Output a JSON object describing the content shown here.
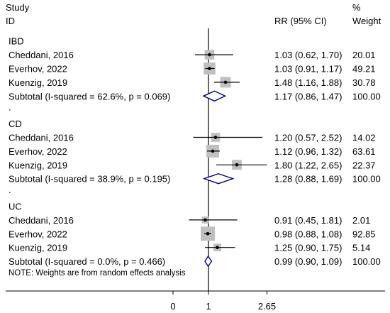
{
  "header": {
    "study_line1": "Study",
    "study_line2": "ID",
    "effect_label": "RR (95% CI)",
    "weight_line1": "%",
    "weight_line2": "Weight"
  },
  "note": "NOTE: Weights are from random effects analysis",
  "chart_data": {
    "type": "forest",
    "effect_measure": "RR",
    "x_ticks": [
      {
        "value": 0,
        "label": "0"
      },
      {
        "value": 1,
        "label": "1"
      },
      {
        "value": 2.65,
        "label": "2.65"
      }
    ],
    "null_line": 1,
    "rows": [
      {
        "kind": "group",
        "label": "IBD"
      },
      {
        "kind": "study",
        "label": "Cheddani, 2016",
        "rr": 1.03,
        "lo": 0.62,
        "hi": 1.7,
        "ci_text": "1.03 (0.62, 1.70)",
        "weight": 20.01,
        "weight_text": "20.01"
      },
      {
        "kind": "study",
        "label": "Everhov, 2022",
        "rr": 1.03,
        "lo": 0.91,
        "hi": 1.17,
        "ci_text": "1.03 (0.91, 1.17)",
        "weight": 49.21,
        "weight_text": "49.21"
      },
      {
        "kind": "study",
        "label": "Kuenzig, 2019",
        "rr": 1.48,
        "lo": 1.16,
        "hi": 1.88,
        "ci_text": "1.48 (1.16, 1.88)",
        "weight": 30.78,
        "weight_text": "30.78"
      },
      {
        "kind": "subtotal",
        "label": "Subtotal  (I-squared = 62.6%, p = 0.069)",
        "rr": 1.17,
        "lo": 0.86,
        "hi": 1.47,
        "ci_text": "1.17 (0.86, 1.47)",
        "weight_text": "100.00"
      },
      {
        "kind": "sep",
        "label": "."
      },
      {
        "kind": "group",
        "label": "CD"
      },
      {
        "kind": "study",
        "label": "Cheddani, 2016",
        "rr": 1.2,
        "lo": 0.57,
        "hi": 2.52,
        "ci_text": "1.20 (0.57, 2.52)",
        "weight": 14.02,
        "weight_text": "14.02"
      },
      {
        "kind": "study",
        "label": "Everhov, 2022",
        "rr": 1.12,
        "lo": 0.96,
        "hi": 1.32,
        "ci_text": "1.12 (0.96, 1.32)",
        "weight": 63.61,
        "weight_text": "63.61"
      },
      {
        "kind": "study",
        "label": "Kuenzig, 2019",
        "rr": 1.8,
        "lo": 1.22,
        "hi": 2.65,
        "ci_text": "1.80 (1.22, 2.65)",
        "weight": 22.37,
        "weight_text": "22.37"
      },
      {
        "kind": "subtotal",
        "label": "Subtotal  (I-squared = 38.9%, p = 0.195)",
        "rr": 1.28,
        "lo": 0.88,
        "hi": 1.69,
        "ci_text": "1.28 (0.88, 1.69)",
        "weight_text": "100.00"
      },
      {
        "kind": "sep",
        "label": "."
      },
      {
        "kind": "group",
        "label": "UC"
      },
      {
        "kind": "study",
        "label": "Cheddani, 2016",
        "rr": 0.91,
        "lo": 0.45,
        "hi": 1.81,
        "ci_text": "0.91 (0.45, 1.81)",
        "weight": 2.01,
        "weight_text": "2.01"
      },
      {
        "kind": "study",
        "label": "Everhov, 2022",
        "rr": 0.98,
        "lo": 0.88,
        "hi": 1.08,
        "ci_text": "0.98 (0.88, 1.08)",
        "weight": 92.85,
        "weight_text": "92.85"
      },
      {
        "kind": "study",
        "label": "Kuenzig, 2019",
        "rr": 1.25,
        "lo": 0.9,
        "hi": 1.75,
        "ci_text": "1.25 (0.90, 1.75)",
        "weight": 5.14,
        "weight_text": "5.14"
      },
      {
        "kind": "subtotal",
        "label": "Subtotal  (I-squared = 0.0%, p = 0.466)",
        "rr": 0.99,
        "lo": 0.9,
        "hi": 1.09,
        "ci_text": "0.99 (0.90, 1.09)",
        "weight_text": "100.00"
      }
    ],
    "colors": {
      "marker_box": "#c0c0c0",
      "line": "#000000",
      "diamond": "#000080"
    }
  }
}
